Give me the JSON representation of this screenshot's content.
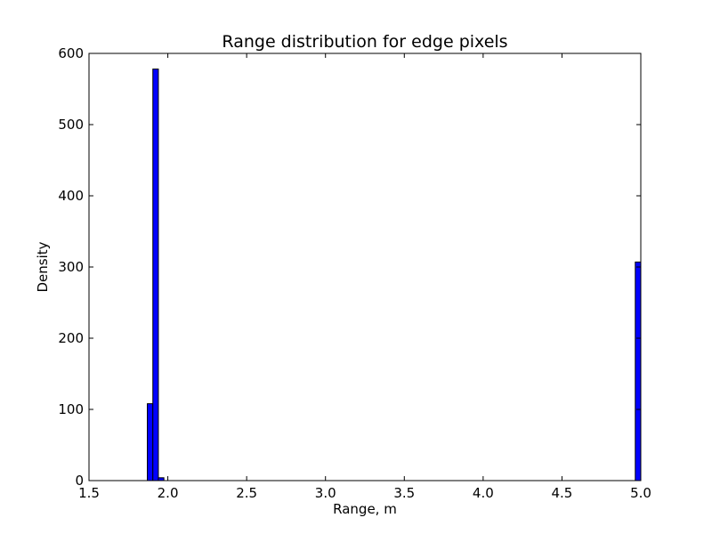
{
  "chart_data": {
    "type": "bar",
    "title": "Range distribution for edge pixels",
    "xlabel": "Range, m",
    "ylabel": "Density",
    "xlim": [
      1.5,
      5.0
    ],
    "ylim": [
      0,
      600
    ],
    "xticks": [
      "1.5",
      "2.0",
      "2.5",
      "3.0",
      "3.5",
      "4.0",
      "4.5",
      "5.0"
    ],
    "yticks": [
      "0",
      "100",
      "200",
      "300",
      "400",
      "500",
      "600"
    ],
    "grid": false,
    "legend": "none",
    "bar_color": "#0000ff",
    "bar_edge_color": "#000000",
    "bins": [
      {
        "start": 1.87,
        "end": 1.905,
        "value": 108
      },
      {
        "start": 1.905,
        "end": 1.94,
        "value": 578
      },
      {
        "start": 1.94,
        "end": 1.975,
        "value": 4
      },
      {
        "start": 4.965,
        "end": 5.0,
        "value": 307
      }
    ]
  }
}
